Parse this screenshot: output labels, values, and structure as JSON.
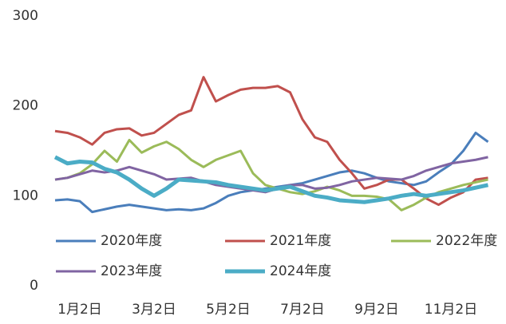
{
  "chart_data": {
    "type": "line",
    "categories": [
      null,
      null,
      "1月2日",
      null,
      null,
      null,
      null,
      null,
      "3月2日",
      null,
      null,
      null,
      null,
      null,
      "5月2日",
      null,
      null,
      null,
      null,
      null,
      "7月2日",
      null,
      null,
      null,
      null,
      null,
      "9月2日",
      null,
      null,
      null,
      null,
      null,
      "11月2日",
      null,
      null,
      null
    ],
    "series": [
      {
        "name": "2020年度",
        "color": "#4a7ebb",
        "values": [
          95,
          96,
          94,
          82,
          85,
          88,
          90,
          88,
          86,
          84,
          85,
          84,
          86,
          92,
          100,
          104,
          106,
          108,
          110,
          112,
          114,
          118,
          122,
          126,
          128,
          125,
          120,
          116,
          114,
          112,
          116,
          126,
          135,
          150,
          170,
          160
        ]
      },
      {
        "name": "2021年度",
        "color": "#c0504d",
        "values": [
          172,
          170,
          165,
          157,
          170,
          174,
          175,
          167,
          170,
          180,
          190,
          195,
          232,
          205,
          212,
          218,
          220,
          220,
          222,
          215,
          185,
          165,
          160,
          140,
          125,
          108,
          112,
          118,
          118,
          108,
          97,
          90,
          98,
          104,
          118,
          120
        ]
      },
      {
        "name": "2022年度",
        "color": "#9bbb59",
        "values": [
          118,
          120,
          125,
          135,
          150,
          138,
          162,
          148,
          155,
          160,
          152,
          140,
          132,
          140,
          145,
          150,
          125,
          112,
          108,
          104,
          102,
          105,
          110,
          106,
          100,
          100,
          99,
          96,
          84,
          90,
          98,
          104,
          108,
          112,
          115,
          118
        ]
      },
      {
        "name": "2023年度",
        "color": "#8064a2",
        "values": [
          118,
          120,
          124,
          128,
          126,
          128,
          132,
          128,
          124,
          118,
          119,
          120,
          116,
          112,
          110,
          108,
          106,
          104,
          108,
          112,
          112,
          108,
          109,
          112,
          116,
          118,
          120,
          119,
          118,
          122,
          128,
          132,
          136,
          138,
          140,
          143
        ]
      },
      {
        "name": "2024年度",
        "color": "#4bacc6",
        "values": [
          143,
          136,
          138,
          137,
          130,
          126,
          118,
          108,
          100,
          108,
          118,
          117,
          116,
          115,
          112,
          110,
          108,
          106,
          108,
          110,
          105,
          100,
          98,
          95,
          94,
          93,
          95,
          97,
          100,
          102,
          100,
          102,
          104,
          106,
          109,
          112
        ]
      }
    ],
    "ylim": [
      0,
      300
    ],
    "yticks": [
      0,
      100,
      200,
      300
    ],
    "grid": false,
    "legend": "bottom-left"
  }
}
